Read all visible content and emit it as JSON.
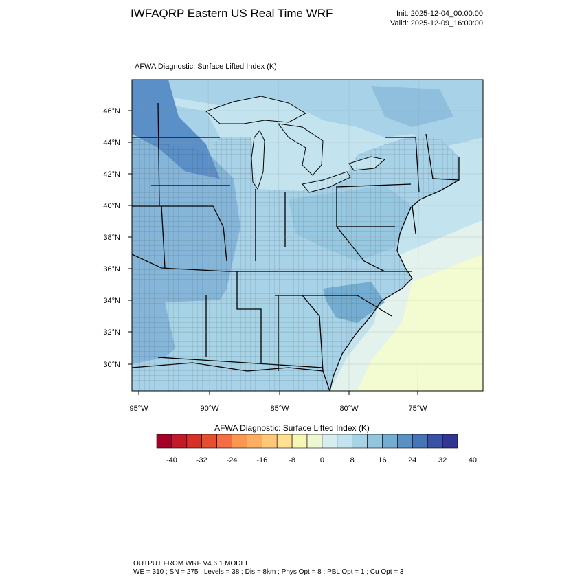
{
  "header": {
    "title": "IWFAQRP Eastern US Real Time WRF",
    "init": "Init: 2025-12-04_00:00:00",
    "valid": "Valid: 2025-12-09_16:00:00"
  },
  "map": {
    "field_title": "AFWA Diagnostic: Surface Lifted Index   (K)",
    "lat_labels": [
      "46°N",
      "44°N",
      "42°N",
      "40°N",
      "38°N",
      "36°N",
      "34°N",
      "32°N",
      "30°N"
    ],
    "lon_labels": [
      "95°W",
      "90°W",
      "85°W",
      "80°W",
      "75°W"
    ],
    "colors": {
      "land_deep": "#5b8fc8",
      "land_mid": "#85b6d9",
      "land_light": "#a8d2e8",
      "water_light": "#c3e4ef",
      "ocean_pale": "#e3f2ec",
      "ocean_yellow": "#f3fbd1"
    }
  },
  "colorbar": {
    "title": "AFWA Diagnostic: Surface Lifted Index  (K)",
    "tick_labels": [
      "-40",
      "-32",
      "-24",
      "-16",
      "-8",
      "0",
      "8",
      "16",
      "24",
      "32",
      "40"
    ],
    "colors": [
      "#a50026",
      "#c21a28",
      "#d73027",
      "#e4502f",
      "#f46d43",
      "#f8974f",
      "#fdae61",
      "#fec877",
      "#fee090",
      "#f6f7b5",
      "#edf7d0",
      "#d7eeee",
      "#c2e4ef",
      "#a6d3e6",
      "#92c5de",
      "#74add1",
      "#5a91c4",
      "#4575b4",
      "#3953a4",
      "#313695"
    ]
  },
  "footer": {
    "line1": "OUTPUT FROM WRF V4.6.1 MODEL",
    "line2": "WE = 310 ; SN = 275 ; Levels = 38 ; Dis = 8km ; Phys Opt = 8 ; PBL Opt = 1 ; Cu Opt = 3"
  }
}
